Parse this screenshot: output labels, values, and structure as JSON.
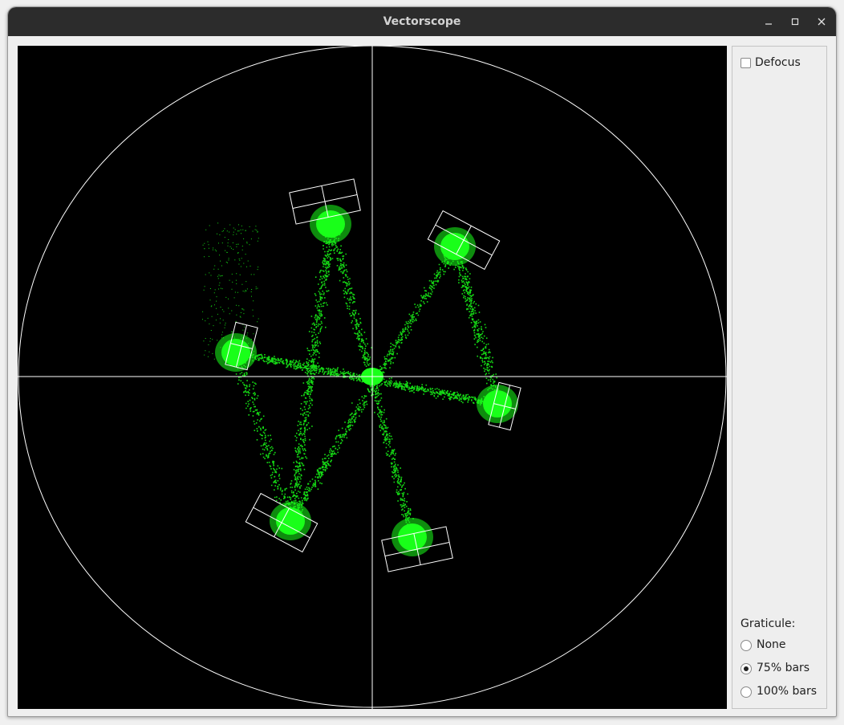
{
  "window": {
    "title": "Vectorscope",
    "minimize_icon": "minimize-icon",
    "maximize_icon": "maximize-icon",
    "close_icon": "close-icon"
  },
  "scope": {
    "trace_color": "#19ff19",
    "graticule_color": "#ffffff",
    "background_color": "#000000",
    "target_boxes": 6
  },
  "controls": {
    "defocus": {
      "label": "Defocus",
      "checked": false
    },
    "graticule": {
      "label": "Graticule:",
      "options": [
        {
          "label": "None",
          "selected": false
        },
        {
          "label": "75% bars",
          "selected": true
        },
        {
          "label": "100% bars",
          "selected": false
        }
      ]
    }
  }
}
